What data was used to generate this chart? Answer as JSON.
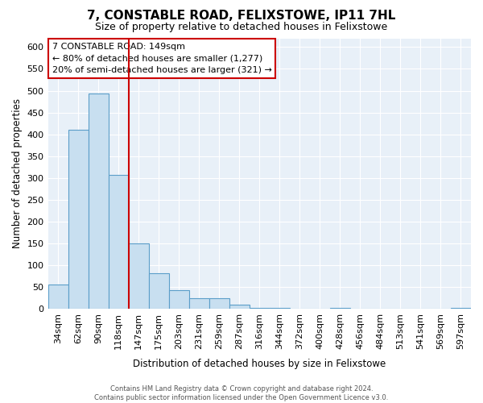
{
  "title": "7, CONSTABLE ROAD, FELIXSTOWE, IP11 7HL",
  "subtitle": "Size of property relative to detached houses in Felixstowe",
  "xlabel": "Distribution of detached houses by size in Felixstowe",
  "ylabel": "Number of detached properties",
  "bar_labels": [
    "34sqm",
    "62sqm",
    "90sqm",
    "118sqm",
    "147sqm",
    "175sqm",
    "203sqm",
    "231sqm",
    "259sqm",
    "287sqm",
    "316sqm",
    "344sqm",
    "372sqm",
    "400sqm",
    "428sqm",
    "456sqm",
    "484sqm",
    "513sqm",
    "541sqm",
    "569sqm",
    "597sqm"
  ],
  "bar_values": [
    57,
    410,
    493,
    308,
    150,
    82,
    43,
    25,
    25,
    10,
    2,
    2,
    0,
    0,
    2,
    0,
    0,
    0,
    0,
    0,
    2
  ],
  "bar_color": "#c8dff0",
  "bar_edge_color": "#5b9ec9",
  "vline_x": 3.5,
  "vline_color": "#cc0000",
  "ylim": [
    0,
    620
  ],
  "yticks": [
    0,
    50,
    100,
    150,
    200,
    250,
    300,
    350,
    400,
    450,
    500,
    550,
    600
  ],
  "annotation_title": "7 CONSTABLE ROAD: 149sqm",
  "annotation_line1": "← 80% of detached houses are smaller (1,277)",
  "annotation_line2": "20% of semi-detached houses are larger (321) →",
  "annotation_box_color": "#ffffff",
  "annotation_box_edge": "#cc0000",
  "footer_line1": "Contains HM Land Registry data © Crown copyright and database right 2024.",
  "footer_line2": "Contains public sector information licensed under the Open Government Licence v3.0.",
  "bg_color": "#ffffff",
  "plot_bg_color": "#e8f0f8",
  "grid_color": "#ffffff"
}
